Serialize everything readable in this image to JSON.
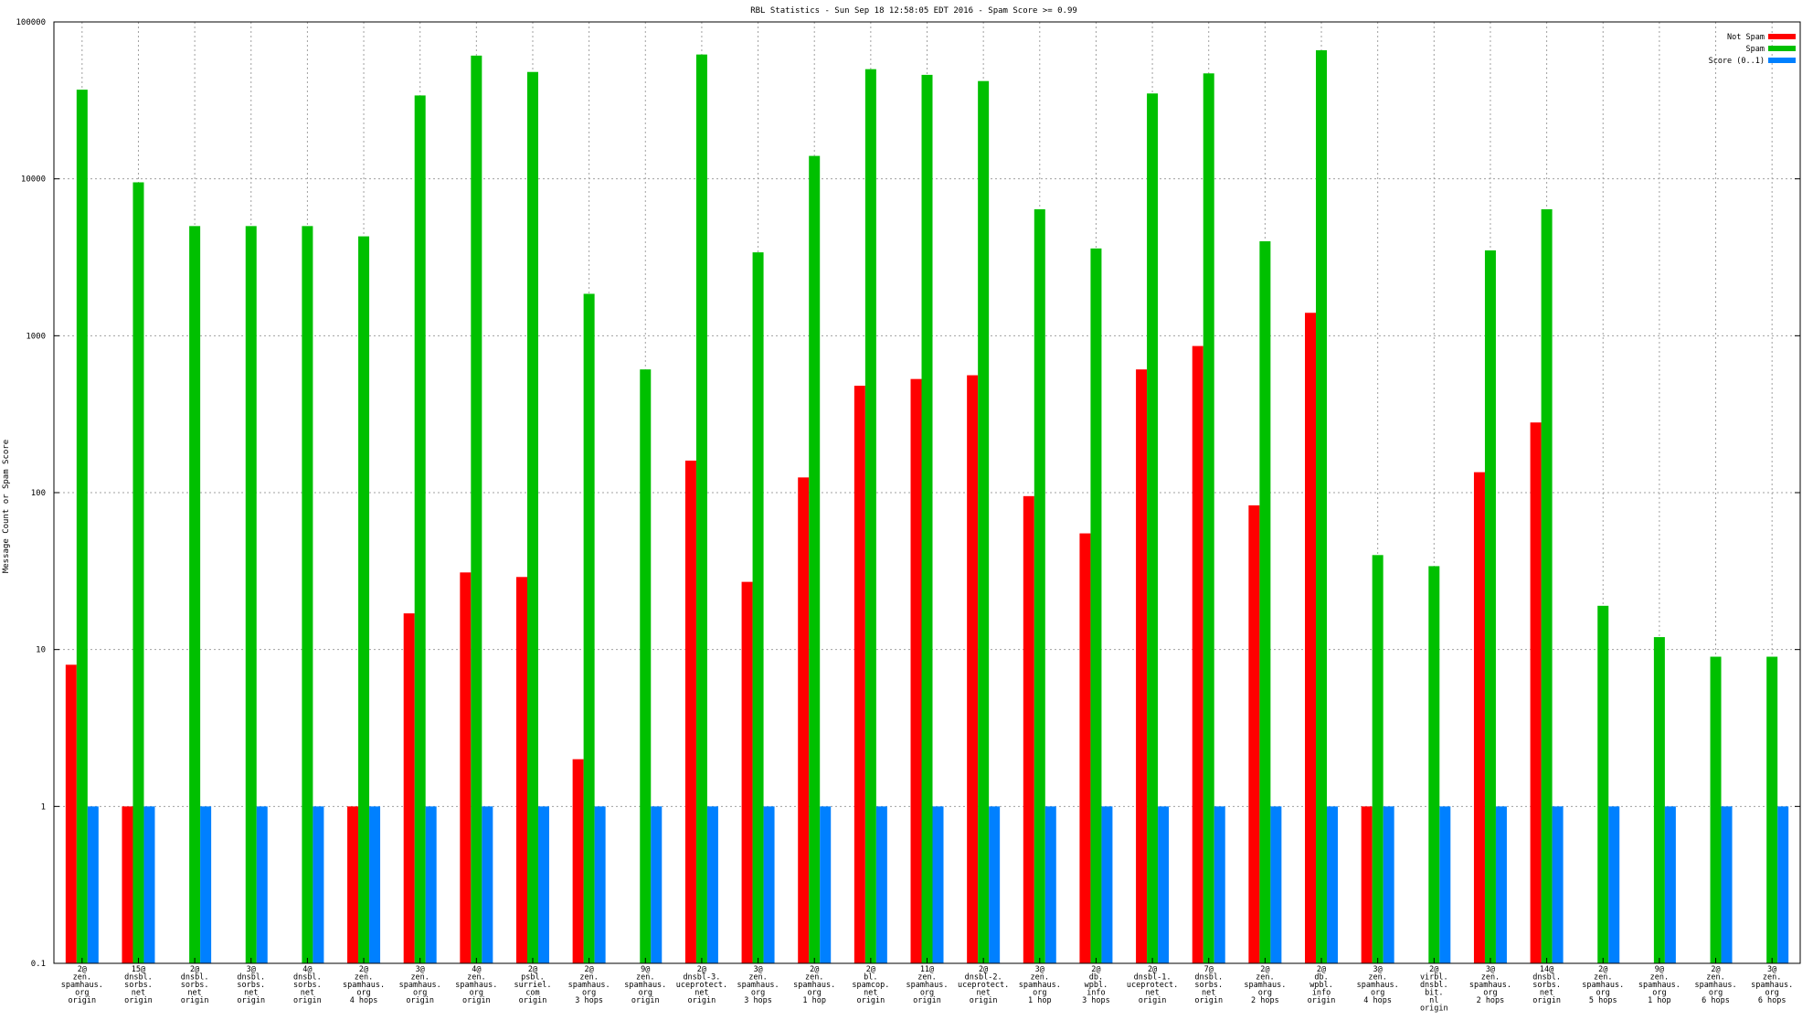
{
  "chart_data": {
    "type": "bar",
    "title": "RBL Statistics - Sun Sep 18 12:58:05 EDT 2016 - Spam Score >= 0.99",
    "xlabel": "",
    "ylabel": "Message Count or Spam Score",
    "y_scale": "log",
    "ylim": [
      0.1,
      100000
    ],
    "y_ticks": [
      {
        "value": 0.1,
        "label": "0.1"
      },
      {
        "value": 1,
        "label": "1"
      },
      {
        "value": 10,
        "label": "10"
      },
      {
        "value": 100,
        "label": "100"
      },
      {
        "value": 1000,
        "label": "1000"
      },
      {
        "value": 10000,
        "label": "10000"
      },
      {
        "value": 100000,
        "label": "100000"
      }
    ],
    "grid": true,
    "legend_position": "top-right",
    "colors": {
      "not_spam": "#ff0000",
      "spam": "#00c000",
      "score": "#0080ff"
    },
    "categories": [
      [
        "2@",
        "zen.",
        "spamhaus.",
        "org",
        "origin"
      ],
      [
        "15@",
        "dnsbl.",
        "sorbs.",
        "net",
        "origin"
      ],
      [
        "2@",
        "dnsbl.",
        "sorbs.",
        "net",
        "origin"
      ],
      [
        "3@",
        "dnsbl.",
        "sorbs.",
        "net",
        "origin"
      ],
      [
        "4@",
        "dnsbl.",
        "sorbs.",
        "net",
        "origin"
      ],
      [
        "2@",
        "zen.",
        "spamhaus.",
        "org",
        "4 hops"
      ],
      [
        "3@",
        "zen.",
        "spamhaus.",
        "org",
        "origin"
      ],
      [
        "4@",
        "zen.",
        "spamhaus.",
        "org",
        "origin"
      ],
      [
        "2@",
        "psbl.",
        "surriel.",
        "com",
        "origin"
      ],
      [
        "2@",
        "zen.",
        "spamhaus.",
        "org",
        "3 hops"
      ],
      [
        "9@",
        "zen.",
        "spamhaus.",
        "org",
        "origin"
      ],
      [
        "2@",
        "dnsbl-3.",
        "uceprotect.",
        "net",
        "origin"
      ],
      [
        "3@",
        "zen.",
        "spamhaus.",
        "org",
        "3 hops"
      ],
      [
        "2@",
        "zen.",
        "spamhaus.",
        "org",
        "1 hop"
      ],
      [
        "2@",
        "bl.",
        "spamcop.",
        "net",
        "origin"
      ],
      [
        "11@",
        "zen.",
        "spamhaus.",
        "org",
        "origin"
      ],
      [
        "2@",
        "dnsbl-2.",
        "uceprotect.",
        "net",
        "origin"
      ],
      [
        "3@",
        "zen.",
        "spamhaus.",
        "org",
        "1 hop"
      ],
      [
        "2@",
        "db.",
        "wpbl.",
        "info",
        "3 hops"
      ],
      [
        "2@",
        "dnsbl-1.",
        "uceprotect.",
        "net",
        "origin"
      ],
      [
        "7@",
        "dnsbl.",
        "sorbs.",
        "net",
        "origin"
      ],
      [
        "2@",
        "zen.",
        "spamhaus.",
        "org",
        "2 hops"
      ],
      [
        "2@",
        "db.",
        "wpbl.",
        "info",
        "origin"
      ],
      [
        "3@",
        "zen.",
        "spamhaus.",
        "org",
        "4 hops"
      ],
      [
        "2@",
        "virbl.",
        "dnsbl.",
        "bit.",
        "nl",
        "origin"
      ],
      [
        "3@",
        "zen.",
        "spamhaus.",
        "org",
        "2 hops"
      ],
      [
        "14@",
        "dnsbl.",
        "sorbs.",
        "net",
        "origin"
      ],
      [
        "2@",
        "zen.",
        "spamhaus.",
        "org",
        "5 hops"
      ],
      [
        "9@",
        "zen.",
        "spamhaus.",
        "org",
        "1 hop"
      ],
      [
        "2@",
        "zen.",
        "spamhaus.",
        "org",
        "6 hops"
      ],
      [
        "3@",
        "zen.",
        "spamhaus.",
        "org",
        "6 hops"
      ]
    ],
    "series": [
      {
        "name": "Not Spam",
        "key": "not_spam",
        "values": [
          8,
          1,
          null,
          null,
          null,
          1,
          17,
          31,
          29,
          2,
          null,
          160,
          27,
          125,
          480,
          530,
          560,
          95,
          55,
          610,
          860,
          83,
          1400,
          1,
          null,
          135,
          280,
          null,
          null,
          null,
          null
        ]
      },
      {
        "name": "Spam",
        "key": "spam",
        "values": [
          37000,
          9500,
          5000,
          5000,
          5000,
          4300,
          34000,
          61000,
          48000,
          1850,
          610,
          62000,
          3400,
          14000,
          50000,
          46000,
          42000,
          6400,
          3600,
          35000,
          47000,
          4000,
          66000,
          40,
          34,
          3500,
          6400,
          19,
          12,
          9,
          9
        ]
      },
      {
        "name": "Score (0..1)",
        "key": "score",
        "values": [
          1,
          1,
          1,
          1,
          1,
          1,
          1,
          1,
          1,
          1,
          1,
          1,
          1,
          1,
          1,
          1,
          1,
          1,
          1,
          1,
          1,
          1,
          1,
          1,
          1,
          1,
          1,
          1,
          1,
          1,
          1
        ]
      }
    ]
  }
}
